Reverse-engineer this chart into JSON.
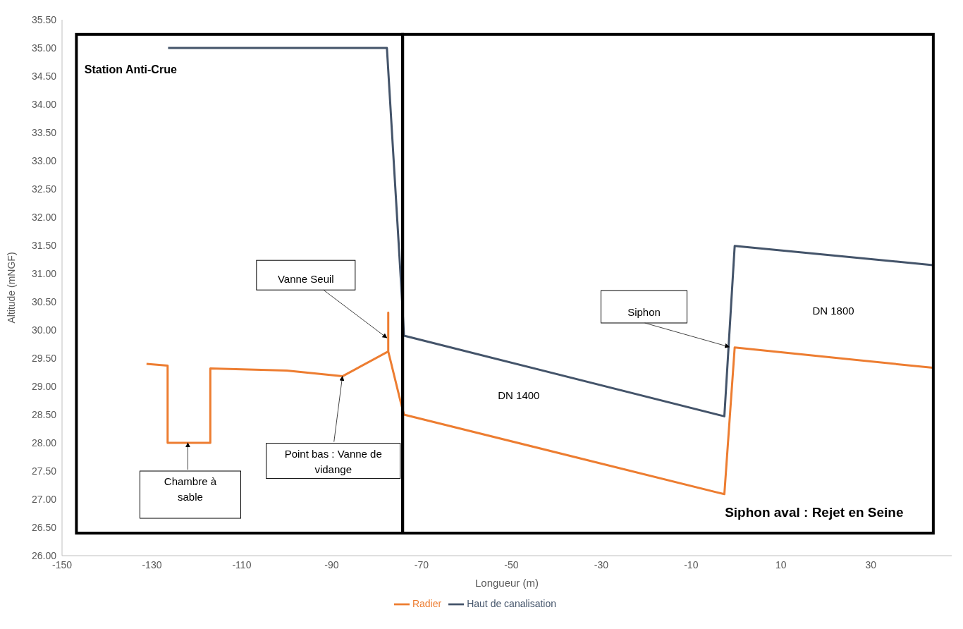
{
  "chart_data": {
    "type": "line",
    "xlabel": "Longueur (m)",
    "ylabel": "Altitude (mNGF)",
    "xlim": [
      -150,
      48
    ],
    "xticks": [
      -150,
      -130,
      -110,
      -90,
      -70,
      -50,
      -30,
      -10,
      10,
      30
    ],
    "ylim": [
      26,
      35.5
    ],
    "yticks": [
      {
        "value": 26,
        "label": "26.00"
      },
      {
        "value": 26.5,
        "label": "26.50"
      },
      {
        "value": 27,
        "label": "27.00"
      },
      {
        "value": 27.5,
        "label": "27.50"
      },
      {
        "value": 28,
        "label": "28.00"
      },
      {
        "value": 28.5,
        "label": "28.50"
      },
      {
        "value": 29,
        "label": "29.00"
      },
      {
        "value": 29.5,
        "label": "29.50"
      },
      {
        "value": 30,
        "label": "30.00"
      },
      {
        "value": 30.5,
        "label": "30.50"
      },
      {
        "value": 31,
        "label": "31.00"
      },
      {
        "value": 31.5,
        "label": "31.50"
      },
      {
        "value": 32,
        "label": "32.00"
      },
      {
        "value": 32.5,
        "label": "32.50"
      },
      {
        "value": 33,
        "label": "33.00"
      },
      {
        "value": 33.5,
        "label": "33.50"
      },
      {
        "value": 34,
        "label": "34.00"
      },
      {
        "value": 34.5,
        "label": "34.50"
      },
      {
        "value": 35,
        "label": "35.00"
      },
      {
        "value": 35.5,
        "label": "35.50"
      }
    ],
    "grid": false,
    "legend": "bottom",
    "series": [
      {
        "name": "Radier",
        "color": "#ed7d31",
        "x": [
          -131.2,
          -126.5,
          -126.5,
          -117,
          -117,
          -100,
          -87.6,
          -77.4,
          -77.4,
          -77.4,
          -74.5,
          -73.9,
          -2.6,
          -0.3,
          43.8
        ],
        "values": [
          29.4,
          29.37,
          28.0,
          28.0,
          29.32,
          29.28,
          29.18,
          29.62,
          30.31,
          29.62,
          28.68,
          28.5,
          27.09,
          29.69,
          29.33
        ]
      },
      {
        "name": "Haut de canalisation",
        "color": "#44546a",
        "x": [
          -126.4,
          -77.7,
          -74.5,
          -73.9,
          -2.6,
          -0.3,
          43.8
        ],
        "values": [
          35.0,
          35.0,
          30.76,
          29.9,
          28.47,
          31.49,
          31.15
        ]
      }
    ],
    "annotations": [
      "Station Anti-Crue",
      {
        "text": "Vanne Seuil",
        "x": -77.7,
        "y": 29.86
      },
      {
        "text": "Point bas : Vanne de vidange",
        "x": -87.6,
        "y": 29.18
      },
      {
        "text": "Chambre à sable",
        "x": -122,
        "y": 28.0
      },
      {
        "text": "Siphon",
        "x": -1.5,
        "y": 29.7
      },
      "DN 1400",
      "DN 1800",
      "Siphon aval : Rejet en Seine"
    ]
  }
}
